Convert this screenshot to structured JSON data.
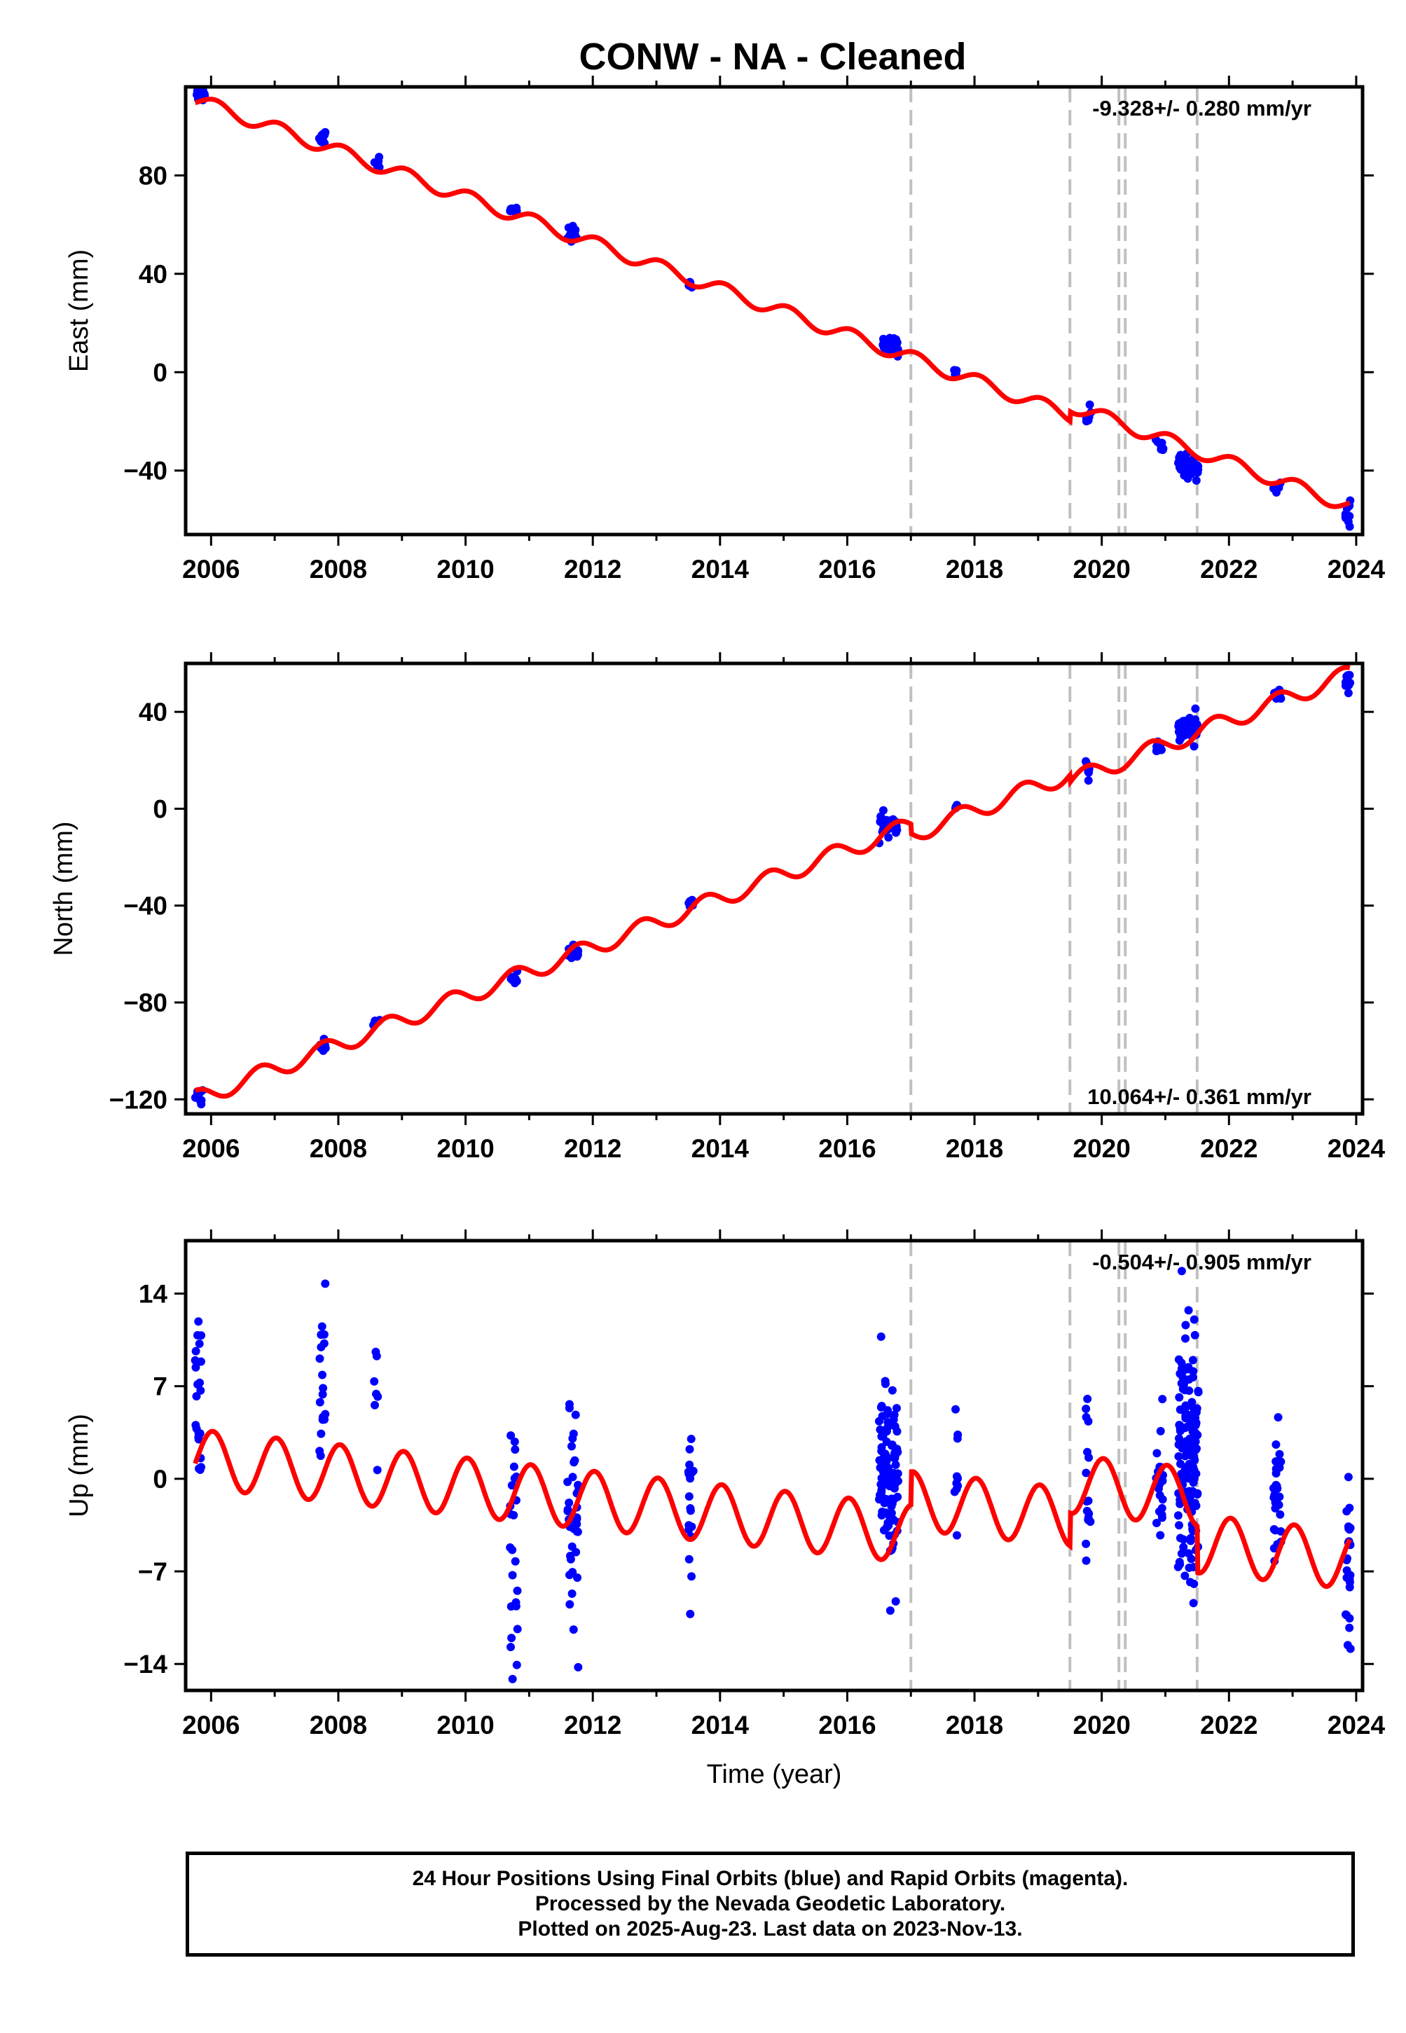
{
  "colors": {
    "final_orbits": "#0000ff",
    "model": "#ff0000",
    "breaks": "#c0c0c0",
    "frame": "#000000"
  },
  "chart_data": [
    {
      "type": "scatter",
      "title": "CONW  - NA - Cleaned",
      "xlabel": "",
      "ylabel": "East (mm)",
      "xlim": [
        2005.6,
        2024.1
      ],
      "ylim": [
        -66,
        116
      ],
      "x_ticks": [
        "2006",
        "2008",
        "2010",
        "2012",
        "2014",
        "2016",
        "2018",
        "2020",
        "2022",
        "2024"
      ],
      "y_ticks": [
        {
          "v": 80,
          "label": "80"
        },
        {
          "v": 40,
          "label": "40"
        },
        {
          "v": 0,
          "label": "0"
        },
        {
          "v": -40,
          "label": "−40"
        }
      ],
      "rate_text": "-9.328+/- 0.280 mm/yr",
      "rate_position": "top-right",
      "model": {
        "intercept_2006": 108.5,
        "rate": -9.328,
        "annual_amp": 2.8,
        "annual_phase": 1.1,
        "offsets": [
          {
            "t": 2019.5,
            "d": 4.0
          }
        ]
      },
      "clusters": [
        {
          "t": 2005.75,
          "len": 0.15,
          "c": 113.0,
          "n": 14,
          "scatter": 1.5
        },
        {
          "t": 2007.7,
          "len": 0.1,
          "c": 95.5,
          "n": 12,
          "scatter": 1.6
        },
        {
          "t": 2008.55,
          "len": 0.1,
          "c": 86.0,
          "n": 7,
          "scatter": 1.5
        },
        {
          "t": 2010.7,
          "len": 0.12,
          "c": 66.0,
          "n": 8,
          "scatter": 1.2
        },
        {
          "t": 2011.6,
          "len": 0.18,
          "c": 57.0,
          "n": 12,
          "scatter": 1.6
        },
        {
          "t": 2013.5,
          "len": 0.08,
          "c": 35.0,
          "n": 5,
          "scatter": 1.0
        },
        {
          "t": 2016.5,
          "len": 0.3,
          "c": 10.5,
          "n": 30,
          "scatter": 1.8
        },
        {
          "t": 2017.68,
          "len": 0.06,
          "c": 0.5,
          "n": 4,
          "scatter": 1.0
        },
        {
          "t": 2019.75,
          "len": 0.08,
          "c": -17.0,
          "n": 7,
          "scatter": 3.0
        },
        {
          "t": 2020.85,
          "len": 0.12,
          "c": -30.0,
          "n": 8,
          "scatter": 1.2
        },
        {
          "t": 2021.2,
          "len": 0.32,
          "c": -38.5,
          "n": 40,
          "scatter": 2.5
        },
        {
          "t": 2022.7,
          "len": 0.12,
          "c": -47.0,
          "n": 10,
          "scatter": 1.2
        },
        {
          "t": 2023.83,
          "len": 0.08,
          "c": -57.0,
          "n": 12,
          "scatter": 2.5
        }
      ]
    },
    {
      "type": "scatter",
      "title": "",
      "xlabel": "",
      "ylabel": "North (mm)",
      "xlim": [
        2005.6,
        2024.1
      ],
      "ylim": [
        -126,
        60
      ],
      "x_ticks": [
        "2006",
        "2008",
        "2010",
        "2012",
        "2014",
        "2016",
        "2018",
        "2020",
        "2022",
        "2024"
      ],
      "y_ticks": [
        {
          "v": 40,
          "label": "40"
        },
        {
          "v": 0,
          "label": "0"
        },
        {
          "v": -40,
          "label": "−40"
        },
        {
          "v": -80,
          "label": "−80"
        },
        {
          "v": -120,
          "label": "−120"
        }
      ],
      "rate_text": "10.064+/- 0.361 mm/yr",
      "rate_position": "bottom-right",
      "model": {
        "intercept_2006": -117.5,
        "rate": 10.064,
        "annual_amp": 3.6,
        "annual_phase": 3.0,
        "offsets": [
          {
            "t": 2017.0,
            "d": -4.0
          },
          {
            "t": 2019.5,
            "d": -3.0
          }
        ]
      },
      "clusters": [
        {
          "t": 2005.75,
          "len": 0.12,
          "c": -118.0,
          "n": 12,
          "scatter": 2.2
        },
        {
          "t": 2007.7,
          "len": 0.1,
          "c": -98.5,
          "n": 10,
          "scatter": 1.6
        },
        {
          "t": 2008.55,
          "len": 0.1,
          "c": -87.5,
          "n": 6,
          "scatter": 1.2
        },
        {
          "t": 2010.7,
          "len": 0.12,
          "c": -70.5,
          "n": 8,
          "scatter": 1.2
        },
        {
          "t": 2011.6,
          "len": 0.18,
          "c": -59.0,
          "n": 12,
          "scatter": 1.5
        },
        {
          "t": 2013.5,
          "len": 0.08,
          "c": -39.0,
          "n": 5,
          "scatter": 1.2
        },
        {
          "t": 2016.5,
          "len": 0.3,
          "c": -6.5,
          "n": 30,
          "scatter": 2.2
        },
        {
          "t": 2017.68,
          "len": 0.06,
          "c": 0.0,
          "n": 4,
          "scatter": 0.8
        },
        {
          "t": 2019.75,
          "len": 0.08,
          "c": 15.5,
          "n": 6,
          "scatter": 1.5
        },
        {
          "t": 2020.85,
          "len": 0.12,
          "c": 25.0,
          "n": 8,
          "scatter": 1.2
        },
        {
          "t": 2021.2,
          "len": 0.32,
          "c": 33.0,
          "n": 40,
          "scatter": 3.0
        },
        {
          "t": 2022.7,
          "len": 0.12,
          "c": 47.0,
          "n": 10,
          "scatter": 1.2
        },
        {
          "t": 2023.83,
          "len": 0.08,
          "c": 53.0,
          "n": 10,
          "scatter": 1.8
        }
      ]
    },
    {
      "type": "scatter",
      "title": "",
      "xlabel": "Time (year)",
      "ylabel": "Up (mm)",
      "xlim": [
        2005.6,
        2024.1
      ],
      "ylim": [
        -16,
        18
      ],
      "x_ticks": [
        "2006",
        "2008",
        "2010",
        "2012",
        "2014",
        "2016",
        "2018",
        "2020",
        "2022",
        "2024"
      ],
      "y_ticks": [
        {
          "v": 14,
          "label": "14"
        },
        {
          "v": 7,
          "label": "7"
        },
        {
          "v": 0,
          "label": "0"
        },
        {
          "v": -7,
          "label": "−7"
        },
        {
          "v": -14,
          "label": "−14"
        }
      ],
      "rate_text": "-0.504+/- 0.905 mm/yr",
      "rate_position": "top-right",
      "model": {
        "intercept_2006": 1.4,
        "rate": -0.504,
        "annual_amp": 2.2,
        "annual_phase": 1.4,
        "offsets": [
          {
            "t": 2017.0,
            "d": 2.5
          },
          {
            "t": 2019.5,
            "d": 2.5
          },
          {
            "t": 2021.5,
            "d": -3.5
          }
        ]
      },
      "clusters": [
        {
          "t": 2005.75,
          "len": 0.1,
          "c": 5.0,
          "n": 22,
          "scatter": 4.0
        },
        {
          "t": 2007.7,
          "len": 0.1,
          "c": 7.0,
          "n": 18,
          "scatter": 5.0
        },
        {
          "t": 2008.55,
          "len": 0.08,
          "c": 5.0,
          "n": 7,
          "scatter": 3.5
        },
        {
          "t": 2010.7,
          "len": 0.12,
          "c": -5.5,
          "n": 24,
          "scatter": 4.0
        },
        {
          "t": 2011.6,
          "len": 0.18,
          "c": -4.0,
          "n": 40,
          "scatter": 4.0
        },
        {
          "t": 2013.5,
          "len": 0.08,
          "c": -2.0,
          "n": 18,
          "scatter": 4.5
        },
        {
          "t": 2016.5,
          "len": 0.3,
          "c": 0.0,
          "n": 110,
          "scatter": 3.5
        },
        {
          "t": 2017.68,
          "len": 0.06,
          "c": 0.5,
          "n": 10,
          "scatter": 2.0
        },
        {
          "t": 2019.75,
          "len": 0.08,
          "c": 0.5,
          "n": 16,
          "scatter": 3.5
        },
        {
          "t": 2020.85,
          "len": 0.12,
          "c": 0.0,
          "n": 24,
          "scatter": 2.5
        },
        {
          "t": 2021.2,
          "len": 0.32,
          "c": 1.5,
          "n": 150,
          "scatter": 4.5
        },
        {
          "t": 2022.7,
          "len": 0.12,
          "c": -2.0,
          "n": 28,
          "scatter": 3.0
        },
        {
          "t": 2023.83,
          "len": 0.08,
          "c": -7.0,
          "n": 26,
          "scatter": 2.8
        }
      ]
    }
  ],
  "breaks": [
    2017.0,
    2019.5,
    2020.27,
    2020.37,
    2021.5
  ],
  "footer": {
    "line1": "24 Hour Positions Using Final Orbits (blue) and Rapid Orbits (magenta).",
    "line2": "Processed by the Nevada Geodetic Laboratory.",
    "line3": "Plotted on 2025-Aug-23. Last data on 2023-Nov-13."
  }
}
